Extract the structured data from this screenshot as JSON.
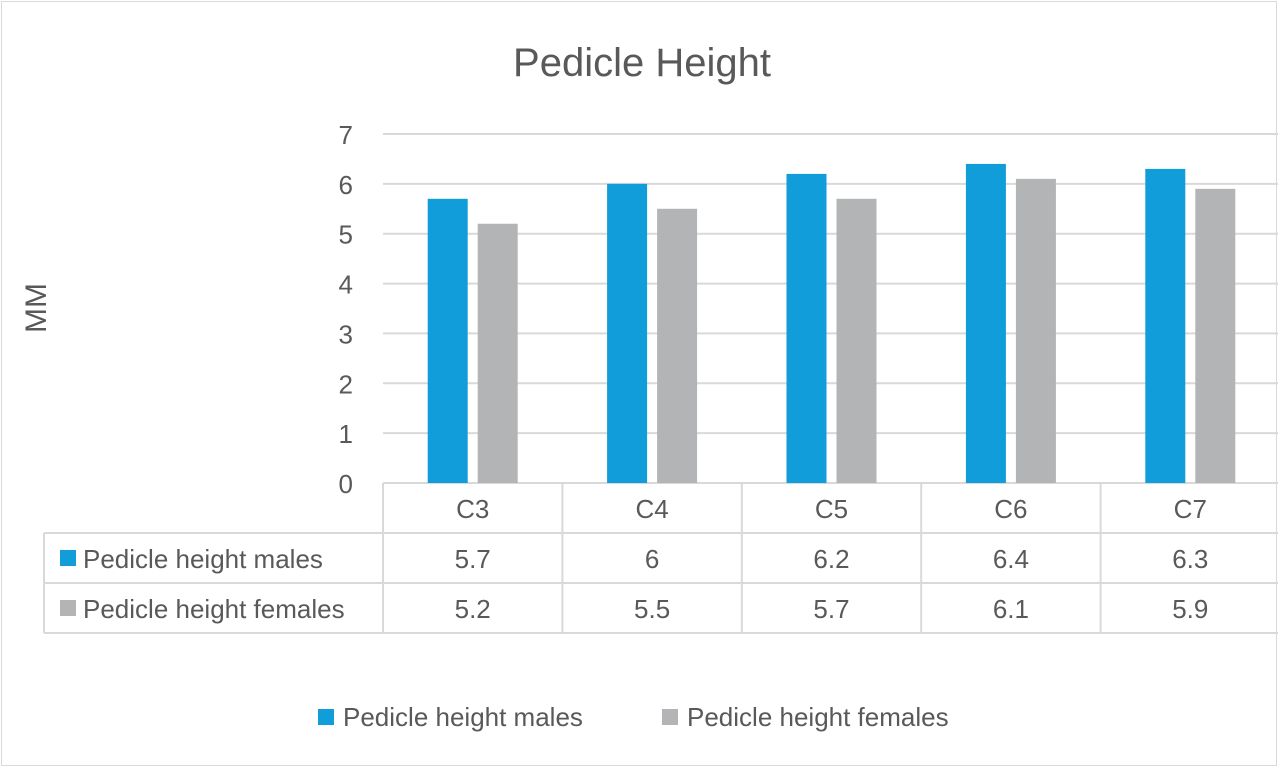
{
  "chart_data": {
    "type": "bar",
    "title": "Pedicle Height",
    "xlabel": "",
    "ylabel": "MM",
    "ylim": [
      0,
      7
    ],
    "yticks": [
      0,
      1,
      2,
      3,
      4,
      5,
      6,
      7
    ],
    "grid": true,
    "categories": [
      "C3",
      "C4",
      "C5",
      "C6",
      "C7"
    ],
    "series": [
      {
        "name": "Pedicle height males",
        "color": "#109dd9",
        "values": [
          5.7,
          6,
          6.2,
          6.4,
          6.3
        ]
      },
      {
        "name": "Pedicle height females",
        "color": "#b2b4b6",
        "values": [
          5.2,
          5.5,
          5.7,
          6.1,
          5.9
        ]
      }
    ],
    "data_table": {
      "rows": [
        {
          "series": "Pedicle height males",
          "cells": [
            "5.7",
            "6",
            "6.2",
            "6.4",
            "6.3"
          ]
        },
        {
          "series": "Pedicle height females",
          "cells": [
            "5.2",
            "5.5",
            "5.7",
            "6.1",
            "5.9"
          ]
        }
      ]
    },
    "legend": "bottom"
  }
}
